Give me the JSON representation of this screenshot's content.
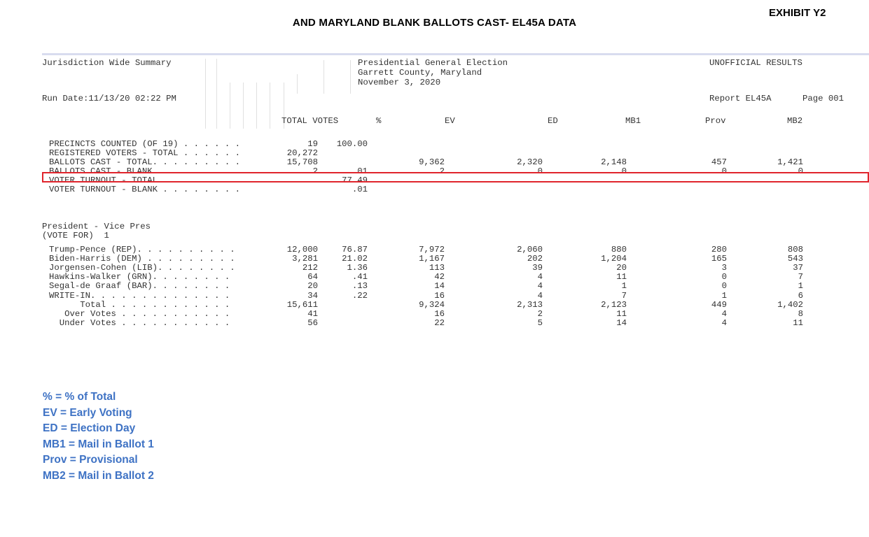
{
  "header": {
    "title": "AND MARYLAND BLANK BALLOTS CAST- EL45A DATA",
    "exhibit": "EXHIBIT Y2"
  },
  "report": {
    "summary_title": "Jurisdiction Wide Summary",
    "election": "Presidential General Election",
    "county": "Garrett County, Maryland",
    "date": "November 3, 2020",
    "status": "UNOFFICIAL RESULTS",
    "run_date": "Run Date:11/13/20 02:22 PM",
    "report_id": "Report EL45A",
    "page": "Page 001",
    "columns": [
      "TOTAL VOTES",
      "%",
      "EV",
      "ED",
      "MB1",
      "Prov",
      "MB2"
    ],
    "summary_rows": [
      {
        "label": "PRECINCTS COUNTED (OF 19) . . . . . .",
        "total": "19",
        "pct": "100.00",
        "ev": "",
        "ed": "",
        "mb1": "",
        "prov": "",
        "mb2": ""
      },
      {
        "label": "REGISTERED VOTERS - TOTAL . . . . . .",
        "total": "20,272",
        "pct": "",
        "ev": "",
        "ed": "",
        "mb1": "",
        "prov": "",
        "mb2": ""
      },
      {
        "label": "BALLOTS CAST - TOTAL. . . . . . . . .",
        "total": "15,708",
        "pct": "",
        "ev": "9,362",
        "ed": "2,320",
        "mb1": "2,148",
        "prov": "457",
        "mb2": "1,421"
      },
      {
        "label": "BALLOTS CAST - BLANK. . . . . . . . .",
        "total": "2",
        "pct": ".01",
        "ev": "2",
        "ed": "0",
        "mb1": "0",
        "prov": "0",
        "mb2": "0"
      },
      {
        "label": "VOTER TURNOUT - TOTAL . . . . . . . .",
        "total": "",
        "pct": "77.49",
        "ev": "",
        "ed": "",
        "mb1": "",
        "prov": "",
        "mb2": ""
      },
      {
        "label": "VOTER TURNOUT - BLANK . . . . . . . .",
        "total": "",
        "pct": ".01",
        "ev": "",
        "ed": "",
        "mb1": "",
        "prov": "",
        "mb2": ""
      }
    ],
    "contest_title": "President - Vice Pres",
    "contest_vote_for": "(VOTE FOR)  1",
    "contest_rows": [
      {
        "label": "Trump-Pence (REP). . . . . . . . . .",
        "total": "12,000",
        "pct": "76.87",
        "ev": "7,972",
        "ed": "2,060",
        "mb1": "880",
        "prov": "280",
        "mb2": "808"
      },
      {
        "label": "Biden-Harris (DEM) . . . . . . . . .",
        "total": "3,281",
        "pct": "21.02",
        "ev": "1,167",
        "ed": "202",
        "mb1": "1,204",
        "prov": "165",
        "mb2": "543"
      },
      {
        "label": "Jorgensen-Cohen (LIB). . . . . . . .",
        "total": "212",
        "pct": "1.36",
        "ev": "113",
        "ed": "39",
        "mb1": "20",
        "prov": "3",
        "mb2": "37"
      },
      {
        "label": "Hawkins-Walker (GRN). . . . . . . .",
        "total": "64",
        "pct": ".41",
        "ev": "42",
        "ed": "4",
        "mb1": "11",
        "prov": "0",
        "mb2": "7"
      },
      {
        "label": "Segal-de Graaf (BAR). . . . . . . .",
        "total": "20",
        "pct": ".13",
        "ev": "14",
        "ed": "4",
        "mb1": "1",
        "prov": "0",
        "mb2": "1"
      },
      {
        "label": "WRITE-IN. . . . . . . . . . . . . .",
        "total": "34",
        "pct": ".22",
        "ev": "16",
        "ed": "4",
        "mb1": "7",
        "prov": "1",
        "mb2": "6"
      },
      {
        "label": "      Total . . . . . . . . . . . .",
        "total": "15,611",
        "pct": "",
        "ev": "9,324",
        "ed": "2,313",
        "mb1": "2,123",
        "prov": "449",
        "mb2": "1,402"
      },
      {
        "label": "   Over Votes . . . . . . . . . . .",
        "total": "41",
        "pct": "",
        "ev": "16",
        "ed": "2",
        "mb1": "11",
        "prov": "4",
        "mb2": "8"
      },
      {
        "label": "  Under Votes . . . . . . . . . . .",
        "total": "56",
        "pct": "",
        "ev": "22",
        "ed": "5",
        "mb1": "14",
        "prov": "4",
        "mb2": "11"
      }
    ]
  },
  "legend": [
    "% = % of Total",
    "EV = Early Voting",
    "ED = Election Day",
    "MB1 = Mail in Ballot 1",
    "Prov = Provisional",
    "MB2 = Mail in Ballot 2"
  ],
  "colors": {
    "highlight_border": "#e0242c",
    "legend_text": "#3e72c4"
  }
}
